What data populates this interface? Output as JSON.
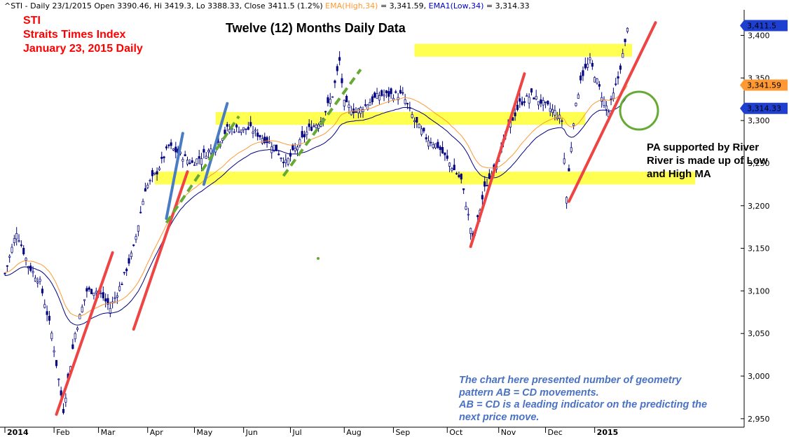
{
  "header": {
    "symbol_info": "^STI - Daily 23/1/2015 Open 3390.46, Hi 3419.3, Lo 3388.33, Close 3411.5 (1.2%)",
    "ema_high": "EMA(High,34)",
    "ema_high_value": " = 3,341.59, ",
    "ema_low": "EMA1(Low,34)",
    "ema_low_value": " = 3,314.33"
  },
  "annotations": {
    "sti_line1": "STI",
    "sti_line2": "Straits Times Index",
    "sti_line3": "January 23, 2015 Daily",
    "title": "Twelve (12) Months Daily Data",
    "pa_line1": "PA supported by River",
    "pa_line2": "River is made up of Low",
    "pa_line3": "and High MA",
    "note_line1": "The chart here presented number of geometry",
    "note_line2": "pattern AB = CD movements.",
    "note_line3": "AB = CD is a leading indicator on the predicting the",
    "note_line4": "next price move."
  },
  "colors": {
    "candle": "#000080",
    "ema_high": "#FF9933",
    "ema_low": "#000080",
    "support_band": "#FFFF33",
    "trend_red": "#EE4444",
    "trend_blue": "#4A7CC4",
    "trend_green": "#66AA33",
    "red_text": "#FF0000",
    "note_text": "#4A72C4"
  },
  "chart_data": {
    "type": "candlestick",
    "x_axis": {
      "labels": [
        "2014",
        "Feb",
        "Mar",
        "Apr",
        "May",
        "Jun",
        "Jul",
        "Aug",
        "Sep",
        "Oct",
        "Nov",
        "Dec",
        "2015"
      ],
      "label_positions": [
        0,
        21,
        40,
        61,
        81,
        102,
        122,
        145,
        166,
        189,
        211,
        231,
        252
      ]
    },
    "y_axis": {
      "min": 2940,
      "max": 3430,
      "ticks": [
        2950,
        3000,
        3050,
        3100,
        3150,
        3200,
        3250,
        3300,
        3350,
        3400
      ]
    },
    "grid": false,
    "bars": 267,
    "close_keypoints": [
      [
        0,
        3120
      ],
      [
        5,
        3170
      ],
      [
        10,
        3130
      ],
      [
        15,
        3110
      ],
      [
        20,
        3050
      ],
      [
        25,
        2960
      ],
      [
        30,
        3050
      ],
      [
        35,
        3100
      ],
      [
        40,
        3100
      ],
      [
        45,
        3080
      ],
      [
        50,
        3110
      ],
      [
        55,
        3150
      ],
      [
        60,
        3220
      ],
      [
        65,
        3240
      ],
      [
        70,
        3270
      ],
      [
        75,
        3260
      ],
      [
        80,
        3250
      ],
      [
        85,
        3260
      ],
      [
        90,
        3270
      ],
      [
        95,
        3290
      ],
      [
        100,
        3290
      ],
      [
        105,
        3290
      ],
      [
        110,
        3280
      ],
      [
        115,
        3270
      ],
      [
        120,
        3250
      ],
      [
        125,
        3270
      ],
      [
        130,
        3290
      ],
      [
        135,
        3300
      ],
      [
        140,
        3330
      ],
      [
        143,
        3370
      ],
      [
        145,
        3320
      ],
      [
        150,
        3310
      ],
      [
        155,
        3320
      ],
      [
        160,
        3330
      ],
      [
        165,
        3330
      ],
      [
        170,
        3330
      ],
      [
        175,
        3300
      ],
      [
        180,
        3280
      ],
      [
        185,
        3270
      ],
      [
        190,
        3250
      ],
      [
        195,
        3230
      ],
      [
        200,
        3160
      ],
      [
        205,
        3220
      ],
      [
        210,
        3250
      ],
      [
        215,
        3290
      ],
      [
        220,
        3320
      ],
      [
        225,
        3330
      ],
      [
        230,
        3320
      ],
      [
        235,
        3310
      ],
      [
        238,
        3300
      ],
      [
        240,
        3210
      ],
      [
        243,
        3300
      ],
      [
        246,
        3350
      ],
      [
        250,
        3370
      ],
      [
        255,
        3330
      ],
      [
        258,
        3310
      ],
      [
        262,
        3350
      ],
      [
        265,
        3390
      ],
      [
        266,
        3411.5
      ]
    ],
    "series": [
      {
        "name": "EMA(High,34)",
        "type": "line",
        "last_value": 3341.59
      },
      {
        "name": "EMA1(Low,34)",
        "type": "line",
        "last_value": 3314.33
      }
    ],
    "price_tags": [
      "3,411.5",
      "3,341.59",
      "3,314.33"
    ],
    "support_bands": [
      {
        "from_bar": 175,
        "to_bar": 268,
        "low": 3375,
        "high": 3390
      },
      {
        "from_bar": 90,
        "to_bar": 248,
        "low": 3295,
        "high": 3310
      },
      {
        "from_bar": 64,
        "to_bar": 295,
        "low": 3225,
        "high": 3240
      }
    ],
    "trend_lines": [
      {
        "color": "red",
        "from": [
          22,
          2955
        ],
        "to": [
          46,
          3145
        ]
      },
      {
        "color": "red",
        "from": [
          55,
          3055
        ],
        "to": [
          78,
          3240
        ]
      },
      {
        "color": "red",
        "from": [
          199,
          3152
        ],
        "to": [
          222,
          3355
        ]
      },
      {
        "color": "red",
        "from": [
          241,
          3205
        ],
        "to": [
          278,
          3415
        ]
      },
      {
        "color": "blue",
        "from": [
          69,
          3185
        ],
        "to": [
          76,
          3285
        ]
      },
      {
        "color": "blue",
        "from": [
          85,
          3225
        ],
        "to": [
          95,
          3320
        ]
      },
      {
        "color": "green",
        "dashed": true,
        "from": [
          69,
          3180
        ],
        "to": [
          100,
          3305
        ]
      },
      {
        "color": "green",
        "dashed": true,
        "from": [
          119,
          3235
        ],
        "to": [
          152,
          3360
        ]
      }
    ]
  }
}
